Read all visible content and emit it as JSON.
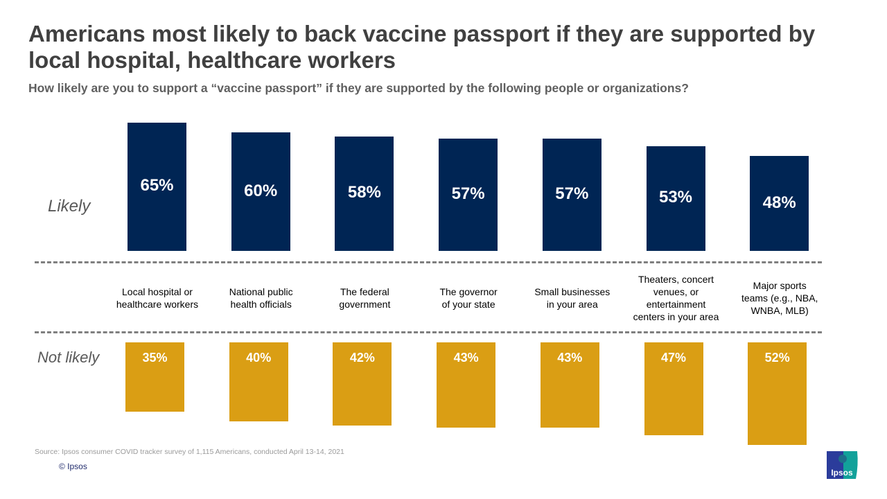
{
  "title": "Americans most likely to back vaccine passport if they are supported by local hospital, healthcare workers",
  "subtitle": "How likely are you to support a “vaccine passport” if they are supported by the following  people or organizations?",
  "source": "Source: Ipsos consumer COVID tracker survey of 1,115 Americans, conducted April 13-14, 2021",
  "copyright": "© Ipsos",
  "logo_text": "Ipsos",
  "colors": {
    "likely": "#002554",
    "not_likely": "#DA9E14",
    "logo_blue": "#2B3C9B",
    "logo_teal": "#12A19A"
  },
  "chart_data": {
    "type": "bar",
    "categories": [
      "Local hospital or\nhealthcare workers",
      "National public\nhealth officials",
      "The federal\ngovernment",
      "The governor\nof your state",
      "Small businesses\nin your area",
      "Theaters, concert\nvenues, or\nentertainment\ncenters in your area",
      "Major sports\nteams (e.g., NBA,\nWNBA, MLB)"
    ],
    "series": [
      {
        "name": "Likely",
        "values": [
          65,
          60,
          58,
          57,
          57,
          53,
          48
        ],
        "labels": [
          "65%",
          "60%",
          "58%",
          "57%",
          "57%",
          "53%",
          "48%"
        ]
      },
      {
        "name": "Not likely",
        "values": [
          35,
          40,
          42,
          43,
          43,
          47,
          52
        ],
        "labels": [
          "35%",
          "40%",
          "42%",
          "43%",
          "43%",
          "47%",
          "52%"
        ]
      }
    ],
    "unit": "%"
  }
}
